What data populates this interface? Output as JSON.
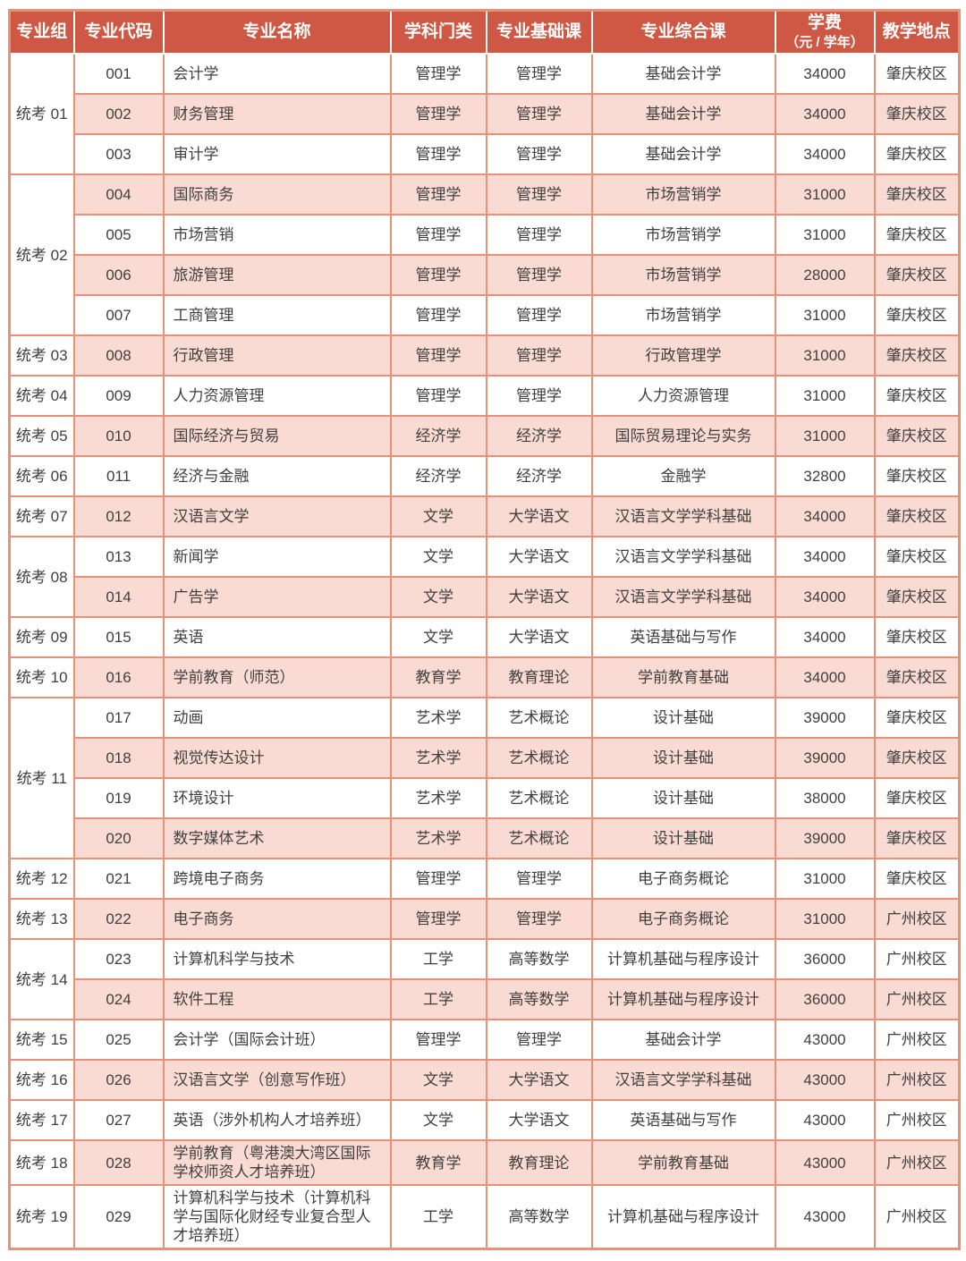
{
  "colors": {
    "header_bg": "#CE5843",
    "header_text": "#FFFFFF",
    "row_pink": "#F9DBD3",
    "row_white": "#FFFFFF",
    "grid_border": "#E89179",
    "body_text": "#3F3F3F"
  },
  "table": {
    "columns": [
      {
        "label": "专业组"
      },
      {
        "label": "专业代码"
      },
      {
        "label": "专业名称"
      },
      {
        "label": "学科门类"
      },
      {
        "label": "专业基础课"
      },
      {
        "label": "学费",
        "sublabel": "（元 / 学年）"
      },
      {
        "label": "教学地点"
      }
    ],
    "columns_full": [
      {
        "label": "专业组"
      },
      {
        "label": "专业代码"
      },
      {
        "label": "专业名称"
      },
      {
        "label": "学科门类"
      },
      {
        "label": "专业基础课"
      },
      {
        "label": "专业综合课"
      },
      {
        "label": "学费",
        "sublabel": "（元 / 学年）"
      },
      {
        "label": "教学地点"
      }
    ],
    "groups": [
      {
        "group": "统考 01",
        "rows": [
          {
            "code": "001",
            "name": "会计学",
            "discipline": "管理学",
            "basic_course": "管理学",
            "comprehensive_course": "基础会计学",
            "tuition": "34000",
            "location": "肇庆校区"
          },
          {
            "code": "002",
            "name": "财务管理",
            "discipline": "管理学",
            "basic_course": "管理学",
            "comprehensive_course": "基础会计学",
            "tuition": "34000",
            "location": "肇庆校区"
          },
          {
            "code": "003",
            "name": "审计学",
            "discipline": "管理学",
            "basic_course": "管理学",
            "comprehensive_course": "基础会计学",
            "tuition": "34000",
            "location": "肇庆校区"
          }
        ]
      },
      {
        "group": "统考 02",
        "rows": [
          {
            "code": "004",
            "name": "国际商务",
            "discipline": "管理学",
            "basic_course": "管理学",
            "comprehensive_course": "市场营销学",
            "tuition": "31000",
            "location": "肇庆校区"
          },
          {
            "code": "005",
            "name": "市场营销",
            "discipline": "管理学",
            "basic_course": "管理学",
            "comprehensive_course": "市场营销学",
            "tuition": "31000",
            "location": "肇庆校区"
          },
          {
            "code": "006",
            "name": "旅游管理",
            "discipline": "管理学",
            "basic_course": "管理学",
            "comprehensive_course": "市场营销学",
            "tuition": "28000",
            "location": "肇庆校区"
          },
          {
            "code": "007",
            "name": "工商管理",
            "discipline": "管理学",
            "basic_course": "管理学",
            "comprehensive_course": "市场营销学",
            "tuition": "31000",
            "location": "肇庆校区"
          }
        ]
      },
      {
        "group": "统考 03",
        "rows": [
          {
            "code": "008",
            "name": "行政管理",
            "discipline": "管理学",
            "basic_course": "管理学",
            "comprehensive_course": "行政管理学",
            "tuition": "31000",
            "location": "肇庆校区"
          }
        ]
      },
      {
        "group": "统考 04",
        "rows": [
          {
            "code": "009",
            "name": "人力资源管理",
            "discipline": "管理学",
            "basic_course": "管理学",
            "comprehensive_course": "人力资源管理",
            "tuition": "31000",
            "location": "肇庆校区"
          }
        ]
      },
      {
        "group": "统考 05",
        "rows": [
          {
            "code": "010",
            "name": "国际经济与贸易",
            "discipline": "经济学",
            "basic_course": "经济学",
            "comprehensive_course": "国际贸易理论与实务",
            "tuition": "31000",
            "location": "肇庆校区"
          }
        ]
      },
      {
        "group": "统考 06",
        "rows": [
          {
            "code": "011",
            "name": "经济与金融",
            "discipline": "经济学",
            "basic_course": "经济学",
            "comprehensive_course": "金融学",
            "tuition": "32800",
            "location": "肇庆校区"
          }
        ]
      },
      {
        "group": "统考 07",
        "rows": [
          {
            "code": "012",
            "name": "汉语言文学",
            "discipline": "文学",
            "basic_course": "大学语文",
            "comprehensive_course": "汉语言文学学科基础",
            "tuition": "34000",
            "location": "肇庆校区"
          }
        ]
      },
      {
        "group": "统考 08",
        "rows": [
          {
            "code": "013",
            "name": "新闻学",
            "discipline": "文学",
            "basic_course": "大学语文",
            "comprehensive_course": "汉语言文学学科基础",
            "tuition": "34000",
            "location": "肇庆校区"
          },
          {
            "code": "014",
            "name": "广告学",
            "discipline": "文学",
            "basic_course": "大学语文",
            "comprehensive_course": "汉语言文学学科基础",
            "tuition": "34000",
            "location": "肇庆校区"
          }
        ]
      },
      {
        "group": "统考 09",
        "rows": [
          {
            "code": "015",
            "name": "英语",
            "discipline": "文学",
            "basic_course": "大学语文",
            "comprehensive_course": "英语基础与写作",
            "tuition": "34000",
            "location": "肇庆校区"
          }
        ]
      },
      {
        "group": "统考 10",
        "rows": [
          {
            "code": "016",
            "name": "学前教育（师范）",
            "discipline": "教育学",
            "basic_course": "教育理论",
            "comprehensive_course": "学前教育基础",
            "tuition": "34000",
            "location": "肇庆校区"
          }
        ]
      },
      {
        "group": "统考 11",
        "rows": [
          {
            "code": "017",
            "name": "动画",
            "discipline": "艺术学",
            "basic_course": "艺术概论",
            "comprehensive_course": "设计基础",
            "tuition": "39000",
            "location": "肇庆校区"
          },
          {
            "code": "018",
            "name": "视觉传达设计",
            "discipline": "艺术学",
            "basic_course": "艺术概论",
            "comprehensive_course": "设计基础",
            "tuition": "39000",
            "location": "肇庆校区"
          },
          {
            "code": "019",
            "name": "环境设计",
            "discipline": "艺术学",
            "basic_course": "艺术概论",
            "comprehensive_course": "设计基础",
            "tuition": "38000",
            "location": "肇庆校区"
          },
          {
            "code": "020",
            "name": "数字媒体艺术",
            "discipline": "艺术学",
            "basic_course": "艺术概论",
            "comprehensive_course": "设计基础",
            "tuition": "39000",
            "location": "肇庆校区"
          }
        ]
      },
      {
        "group": "统考 12",
        "rows": [
          {
            "code": "021",
            "name": "跨境电子商务",
            "discipline": "管理学",
            "basic_course": "管理学",
            "comprehensive_course": "电子商务概论",
            "tuition": "31000",
            "location": "肇庆校区"
          }
        ]
      },
      {
        "group": "统考 13",
        "rows": [
          {
            "code": "022",
            "name": "电子商务",
            "discipline": "管理学",
            "basic_course": "管理学",
            "comprehensive_course": "电子商务概论",
            "tuition": "31000",
            "location": "广州校区"
          }
        ]
      },
      {
        "group": "统考 14",
        "rows": [
          {
            "code": "023",
            "name": "计算机科学与技术",
            "discipline": "工学",
            "basic_course": "高等数学",
            "comprehensive_course": "计算机基础与程序设计",
            "tuition": "36000",
            "location": "广州校区"
          },
          {
            "code": "024",
            "name": "软件工程",
            "discipline": "工学",
            "basic_course": "高等数学",
            "comprehensive_course": "计算机基础与程序设计",
            "tuition": "36000",
            "location": "广州校区"
          }
        ]
      },
      {
        "group": "统考 15",
        "rows": [
          {
            "code": "025",
            "name": "会计学（国际会计班）",
            "discipline": "管理学",
            "basic_course": "管理学",
            "comprehensive_course": "基础会计学",
            "tuition": "43000",
            "location": "广州校区"
          }
        ]
      },
      {
        "group": "统考 16",
        "rows": [
          {
            "code": "026",
            "name": "汉语言文学（创意写作班）",
            "discipline": "文学",
            "basic_course": "大学语文",
            "comprehensive_course": "汉语言文学学科基础",
            "tuition": "43000",
            "location": "广州校区"
          }
        ]
      },
      {
        "group": "统考 17",
        "rows": [
          {
            "code": "027",
            "name": "英语（涉外机构人才培养班）",
            "discipline": "文学",
            "basic_course": "大学语文",
            "comprehensive_course": "英语基础与写作",
            "tuition": "43000",
            "location": "广州校区"
          }
        ]
      },
      {
        "group": "统考 18",
        "rows": [
          {
            "code": "028",
            "name": "学前教育（粤港澳大湾区国际学校师资人才培养班）",
            "discipline": "教育学",
            "basic_course": "教育理论",
            "comprehensive_course": "学前教育基础",
            "tuition": "43000",
            "location": "广州校区"
          }
        ]
      },
      {
        "group": "统考 19",
        "rows": [
          {
            "code": "029",
            "name": "计算机科学与技术（计算机科学与国际化财经专业复合型人才培养班）",
            "discipline": "工学",
            "basic_course": "高等数学",
            "comprehensive_course": "计算机基础与程序设计",
            "tuition": "43000",
            "location": "广州校区"
          }
        ]
      }
    ]
  }
}
